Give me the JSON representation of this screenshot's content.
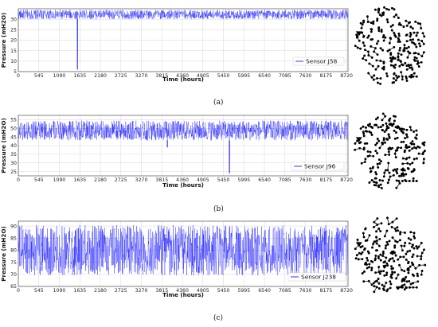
{
  "x_ticks": [
    "0",
    "545",
    "1090",
    "1635",
    "2180",
    "2725",
    "3270",
    "3815",
    "4360",
    "4905",
    "5450",
    "5995",
    "6540",
    "7085",
    "7630",
    "8175",
    "8720"
  ],
  "chart_data": [
    {
      "type": "line",
      "caption": "(a)",
      "xlabel": "Time (hours)",
      "ylabel": "Pressure (mH2O)",
      "xlim": [
        0,
        8760
      ],
      "ylim": [
        5,
        35
      ],
      "y_ticks": [
        5,
        10,
        15,
        20,
        25,
        30
      ],
      "grid": true,
      "legend_position": "bottom-right",
      "series": [
        {
          "name": "Sensor J58",
          "color": "#0000ff",
          "band_low": 30,
          "band_high": 34.5,
          "spikes": [
            {
              "x": 1570,
              "y": 6
            }
          ]
        }
      ]
    },
    {
      "type": "line",
      "caption": "(b)",
      "xlabel": "Time (hours)",
      "ylabel": "Pressure (mH2O)",
      "xlim": [
        0,
        8760
      ],
      "ylim": [
        22.5,
        57.5
      ],
      "y_ticks": [
        25,
        30,
        35,
        40,
        45,
        50,
        55
      ],
      "grid": true,
      "legend_position": "bottom-right",
      "series": [
        {
          "name": "Sensor J96",
          "color": "#0000ff",
          "band_low": 43,
          "band_high": 54.5,
          "spikes": [
            {
              "x": 3960,
              "y": 39
            },
            {
              "x": 5610,
              "y": 24
            }
          ]
        }
      ]
    },
    {
      "type": "line",
      "caption": "(c)",
      "xlabel": "Time (hours)",
      "ylabel": "Pressure (mH2O)",
      "xlim": [
        0,
        8760
      ],
      "ylim": [
        65,
        92
      ],
      "y_ticks": [
        65,
        70,
        75,
        80,
        85,
        90
      ],
      "grid": true,
      "legend_position": "bottom-right",
      "series": [
        {
          "name": "Sensor J238",
          "color": "#0000ff",
          "band_low": 69.5,
          "band_high": 90.5,
          "spikes": []
        }
      ]
    }
  ]
}
